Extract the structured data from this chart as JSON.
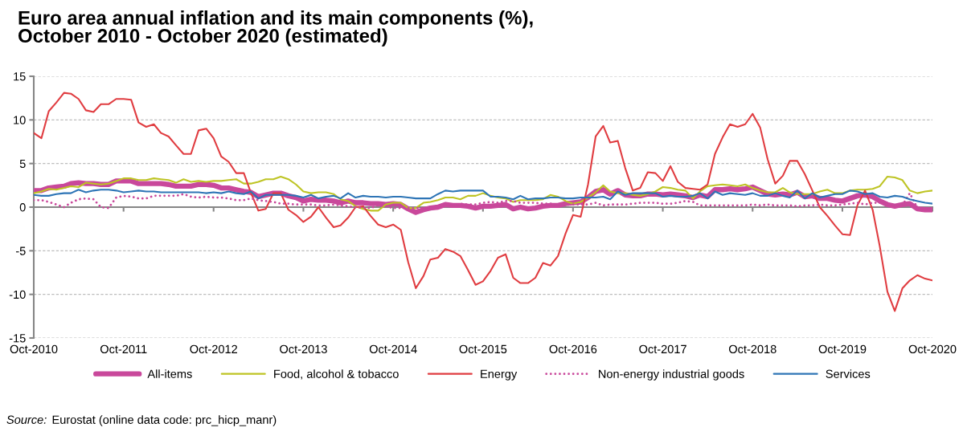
{
  "chart_data": {
    "type": "line",
    "title": "Euro area annual inflation and its main components (%),\nOctober 2010 - October 2020 (estimated)",
    "x": [
      "2010-10",
      "2010-11",
      "2010-12",
      "2011-01",
      "2011-02",
      "2011-03",
      "2011-04",
      "2011-05",
      "2011-06",
      "2011-07",
      "2011-08",
      "2011-09",
      "2011-10",
      "2011-11",
      "2011-12",
      "2012-01",
      "2012-02",
      "2012-03",
      "2012-04",
      "2012-05",
      "2012-06",
      "2012-07",
      "2012-08",
      "2012-09",
      "2012-10",
      "2012-11",
      "2012-12",
      "2013-01",
      "2013-02",
      "2013-03",
      "2013-04",
      "2013-05",
      "2013-06",
      "2013-07",
      "2013-08",
      "2013-09",
      "2013-10",
      "2013-11",
      "2013-12",
      "2014-01",
      "2014-02",
      "2014-03",
      "2014-04",
      "2014-05",
      "2014-06",
      "2014-07",
      "2014-08",
      "2014-09",
      "2014-10",
      "2014-11",
      "2014-12",
      "2015-01",
      "2015-02",
      "2015-03",
      "2015-04",
      "2015-05",
      "2015-06",
      "2015-07",
      "2015-08",
      "2015-09",
      "2015-10",
      "2015-11",
      "2015-12",
      "2016-01",
      "2016-02",
      "2016-03",
      "2016-04",
      "2016-05",
      "2016-06",
      "2016-07",
      "2016-08",
      "2016-09",
      "2016-10",
      "2016-11",
      "2016-12",
      "2017-01",
      "2017-02",
      "2017-03",
      "2017-04",
      "2017-05",
      "2017-06",
      "2017-07",
      "2017-08",
      "2017-09",
      "2017-10",
      "2017-11",
      "2017-12",
      "2018-01",
      "2018-02",
      "2018-03",
      "2018-04",
      "2018-05",
      "2018-06",
      "2018-07",
      "2018-08",
      "2018-09",
      "2018-10",
      "2018-11",
      "2018-12",
      "2019-01",
      "2019-02",
      "2019-03",
      "2019-04",
      "2019-05",
      "2019-06",
      "2019-07",
      "2019-08",
      "2019-09",
      "2019-10",
      "2019-11",
      "2019-12",
      "2020-01",
      "2020-02",
      "2020-03",
      "2020-04",
      "2020-05",
      "2020-06",
      "2020-07",
      "2020-08",
      "2020-09",
      "2020-10"
    ],
    "xlim": [
      "2010-10",
      "2020-10"
    ],
    "xticks": [
      {
        "value": "2010-10",
        "label": "Oct-2010"
      },
      {
        "value": "2011-10",
        "label": "Oct-2011"
      },
      {
        "value": "2012-10",
        "label": "Oct-2012"
      },
      {
        "value": "2013-10",
        "label": "Oct-2013"
      },
      {
        "value": "2014-10",
        "label": "Oct-2014"
      },
      {
        "value": "2015-10",
        "label": "Oct-2015"
      },
      {
        "value": "2016-10",
        "label": "Oct-2016"
      },
      {
        "value": "2017-10",
        "label": "Oct-2017"
      },
      {
        "value": "2018-10",
        "label": "Oct-2018"
      },
      {
        "value": "2019-10",
        "label": "Oct-2019"
      },
      {
        "value": "2020-10",
        "label": "Oct-2020"
      }
    ],
    "ylim": [
      -15,
      15
    ],
    "yticks": [
      -15,
      -10,
      -5,
      0,
      5,
      10,
      15
    ],
    "grid": "y",
    "legend": "bottom",
    "line_style": "solid",
    "series": [
      {
        "name": "All-items",
        "color": "#c9489b",
        "values": [
          1.9,
          1.9,
          2.2,
          2.3,
          2.4,
          2.7,
          2.8,
          2.7,
          2.7,
          2.6,
          2.6,
          3.0,
          3.0,
          3.0,
          2.7,
          2.7,
          2.7,
          2.7,
          2.6,
          2.4,
          2.4,
          2.4,
          2.6,
          2.6,
          2.5,
          2.2,
          2.2,
          2.0,
          1.8,
          1.7,
          1.2,
          1.4,
          1.6,
          1.6,
          1.3,
          1.1,
          0.7,
          0.9,
          0.8,
          0.8,
          0.7,
          0.5,
          0.7,
          0.5,
          0.5,
          0.4,
          0.4,
          0.3,
          0.4,
          0.3,
          -0.2,
          -0.6,
          -0.3,
          -0.1,
          0.0,
          0.3,
          0.2,
          0.2,
          0.1,
          -0.1,
          0.1,
          0.1,
          0.2,
          0.3,
          -0.2,
          0.0,
          -0.2,
          -0.1,
          0.1,
          0.2,
          0.2,
          0.4,
          0.5,
          0.6,
          1.1,
          1.8,
          2.0,
          1.5,
          1.9,
          1.4,
          1.3,
          1.3,
          1.5,
          1.5,
          1.4,
          1.5,
          1.4,
          1.3,
          1.1,
          1.4,
          1.2,
          2.0,
          2.0,
          2.1,
          2.0,
          2.1,
          2.3,
          1.9,
          1.5,
          1.4,
          1.5,
          1.4,
          1.7,
          1.2,
          1.3,
          1.0,
          1.0,
          0.8,
          0.7,
          1.0,
          1.3,
          1.4,
          1.2,
          0.7,
          0.3,
          0.1,
          0.3,
          0.4,
          -0.2,
          -0.3,
          -0.3
        ]
      },
      {
        "name": "Food, alcohol & tobacco",
        "color": "#bec424",
        "values": [
          1.6,
          1.8,
          2.1,
          2.0,
          2.2,
          2.4,
          2.3,
          2.8,
          2.7,
          2.6,
          2.7,
          3.0,
          3.3,
          3.3,
          3.1,
          3.1,
          3.3,
          3.2,
          3.1,
          2.8,
          3.2,
          2.9,
          3.0,
          2.9,
          3.0,
          3.0,
          3.1,
          3.2,
          2.7,
          2.7,
          2.9,
          3.2,
          3.2,
          3.5,
          3.2,
          2.6,
          1.8,
          1.6,
          1.7,
          1.7,
          1.5,
          0.9,
          0.7,
          0.1,
          -0.2,
          -0.4,
          -0.4,
          0.3,
          0.5,
          0.5,
          -0.1,
          -0.1,
          0.5,
          0.6,
          0.8,
          1.1,
          1.1,
          0.9,
          1.3,
          1.3,
          1.6,
          1.3,
          1.1,
          1.0,
          0.6,
          0.8,
          0.8,
          0.8,
          0.9,
          1.4,
          1.2,
          0.7,
          0.4,
          0.6,
          1.1,
          1.7,
          2.5,
          1.8,
          1.6,
          1.6,
          1.4,
          1.3,
          1.5,
          1.8,
          2.3,
          2.2,
          2.0,
          1.9,
          1.0,
          1.8,
          2.4,
          2.5,
          2.6,
          2.5,
          2.4,
          2.6,
          2.2,
          1.9,
          1.7,
          1.7,
          2.2,
          1.7,
          1.5,
          1.5,
          1.5,
          1.8,
          2.0,
          1.6,
          1.6,
          1.9,
          2.0,
          2.0,
          2.1,
          2.4,
          3.5,
          3.4,
          3.1,
          1.9,
          1.6,
          1.8,
          1.9
        ]
      },
      {
        "name": "Energy",
        "color": "#e03c40",
        "values": [
          8.5,
          7.9,
          11.0,
          12.0,
          13.1,
          13.0,
          12.4,
          11.1,
          10.9,
          11.8,
          11.8,
          12.4,
          12.4,
          12.3,
          9.7,
          9.2,
          9.5,
          8.5,
          8.1,
          7.1,
          6.1,
          6.1,
          8.8,
          9.0,
          7.9,
          5.8,
          5.2,
          3.9,
          3.9,
          1.7,
          -0.4,
          -0.2,
          1.6,
          1.6,
          -0.3,
          -0.9,
          -1.7,
          -1.1,
          0.0,
          -1.2,
          -2.3,
          -2.1,
          -1.2,
          0.0,
          0.1,
          -1.0,
          -2.0,
          -2.3,
          -2.0,
          -2.6,
          -6.3,
          -9.3,
          -7.9,
          -6.0,
          -5.8,
          -4.8,
          -5.1,
          -5.6,
          -7.2,
          -8.9,
          -8.5,
          -7.3,
          -5.8,
          -5.4,
          -8.1,
          -8.7,
          -8.7,
          -8.1,
          -6.4,
          -6.7,
          -5.6,
          -3.0,
          -0.9,
          -1.1,
          2.6,
          8.1,
          9.3,
          7.4,
          7.6,
          4.5,
          1.9,
          2.2,
          4.0,
          3.9,
          3.0,
          4.7,
          2.9,
          2.2,
          2.1,
          2.0,
          2.6,
          6.1,
          8.0,
          9.5,
          9.2,
          9.5,
          10.7,
          9.1,
          5.5,
          2.7,
          3.6,
          5.3,
          5.3,
          3.8,
          1.9,
          0.0,
          -1.0,
          -2.1,
          -3.1,
          -3.2,
          0.2,
          1.9,
          -0.3,
          -4.5,
          -9.7,
          -11.9,
          -9.3,
          -8.4,
          -7.8,
          -8.2,
          -8.4
        ]
      },
      {
        "name": "Non-energy industrial goods",
        "color": "#c9489b",
        "line_style": "dotted",
        "values": [
          0.8,
          0.8,
          0.6,
          0.3,
          0.0,
          0.5,
          0.9,
          1.0,
          0.9,
          0.0,
          -0.1,
          1.1,
          1.3,
          1.2,
          1.0,
          1.0,
          1.3,
          1.3,
          1.3,
          1.3,
          1.5,
          1.2,
          1.1,
          1.2,
          1.1,
          1.1,
          1.0,
          0.8,
          0.8,
          1.0,
          0.8,
          0.7,
          0.6,
          0.4,
          0.4,
          0.3,
          0.3,
          0.3,
          0.2,
          0.2,
          0.3,
          0.2,
          0.1,
          0.0,
          -0.1,
          -0.1,
          0.2,
          0.1,
          -0.1,
          -0.1,
          -0.1,
          -0.1,
          -0.1,
          -0.1,
          0.1,
          0.2,
          0.2,
          0.4,
          0.3,
          0.3,
          0.5,
          0.6,
          0.5,
          0.7,
          0.7,
          0.5,
          0.5,
          0.5,
          0.4,
          0.4,
          0.3,
          0.3,
          0.3,
          0.3,
          0.3,
          0.5,
          0.2,
          0.3,
          0.3,
          0.3,
          0.4,
          0.5,
          0.5,
          0.5,
          0.4,
          0.4,
          0.5,
          0.7,
          0.6,
          0.2,
          0.2,
          0.2,
          0.2,
          0.2,
          0.2,
          0.2,
          0.3,
          0.2,
          0.3,
          0.2,
          0.2,
          0.2,
          0.1,
          0.2,
          0.2,
          0.3,
          0.2,
          0.2,
          0.3,
          0.4,
          0.5,
          0.3,
          0.5,
          0.5,
          0.3,
          0.2,
          0.2,
          1.6,
          -0.1,
          -0.1,
          -0.1
        ]
      },
      {
        "name": "Services",
        "color": "#2e75b6",
        "values": [
          1.4,
          1.3,
          1.3,
          1.5,
          1.6,
          1.6,
          2.0,
          1.7,
          1.9,
          2.0,
          2.0,
          1.9,
          1.7,
          1.8,
          1.9,
          1.8,
          1.8,
          1.7,
          1.7,
          1.7,
          1.7,
          1.7,
          1.7,
          1.6,
          1.7,
          1.6,
          1.8,
          1.6,
          1.5,
          1.8,
          1.0,
          1.4,
          1.4,
          1.4,
          1.4,
          1.3,
          1.1,
          1.4,
          1.0,
          1.2,
          1.3,
          1.0,
          1.6,
          1.1,
          1.3,
          1.2,
          1.2,
          1.1,
          1.2,
          1.2,
          1.1,
          1.0,
          1.0,
          1.0,
          1.5,
          1.9,
          1.8,
          1.9,
          1.9,
          1.9,
          1.9,
          1.2,
          1.2,
          1.1,
          0.9,
          1.3,
          0.9,
          1.0,
          1.0,
          1.1,
          1.1,
          1.0,
          1.0,
          1.1,
          1.1,
          1.1,
          1.2,
          0.9,
          1.8,
          1.4,
          1.6,
          1.6,
          1.6,
          1.6,
          1.2,
          1.3,
          1.2,
          1.2,
          1.3,
          1.6,
          1.0,
          1.8,
          1.4,
          1.6,
          1.5,
          1.4,
          1.6,
          1.3,
          1.3,
          1.6,
          1.3,
          1.1,
          1.9,
          1.0,
          1.6,
          1.1,
          1.3,
          1.5,
          1.5,
          1.9,
          1.8,
          1.5,
          1.6,
          1.2,
          1.1,
          1.3,
          1.2,
          0.9,
          0.7,
          0.5,
          0.4
        ]
      }
    ],
    "annotations": [
      "Source:",
      "Eurostat (online data code: prc_hicp_manr)"
    ]
  }
}
